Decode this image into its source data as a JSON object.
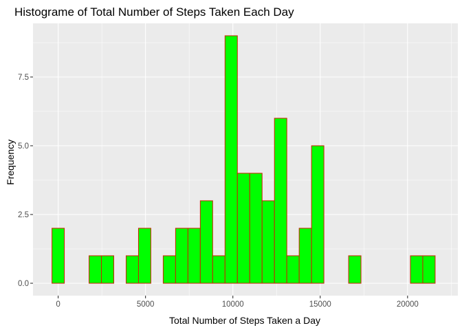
{
  "chart_data": {
    "type": "bar",
    "title": "Histograme of Total Number of Steps Taken Each Day",
    "xlabel": "Total Number of Steps Taken a Day",
    "ylabel": "Frequency",
    "bin_width": 707.5,
    "bin_start": -353.75,
    "bins": 31,
    "values": [
      2,
      0,
      0,
      1,
      1,
      0,
      1,
      2,
      0,
      1,
      2,
      2,
      3,
      1,
      9,
      4,
      4,
      3,
      6,
      1,
      2,
      5,
      0,
      0,
      1,
      0,
      0,
      0,
      0,
      1,
      1
    ],
    "xlim": [
      -1440,
      22880
    ],
    "ylim": [
      -0.45,
      9.45
    ],
    "x_ticks": [
      0,
      5000,
      10000,
      15000,
      20000
    ],
    "x_tick_labels": [
      "0",
      "5000",
      "10000",
      "15000",
      "20000"
    ],
    "y_ticks": [
      0,
      2.5,
      5,
      7.5
    ],
    "y_tick_labels": [
      "0.0",
      "2.5",
      "5.0",
      "7.5"
    ],
    "grid": true,
    "colors": {
      "panel": "#ebebeb",
      "grid": "#ffffff",
      "bar_fill": "#00ff00",
      "bar_border": "#cc2200"
    }
  }
}
